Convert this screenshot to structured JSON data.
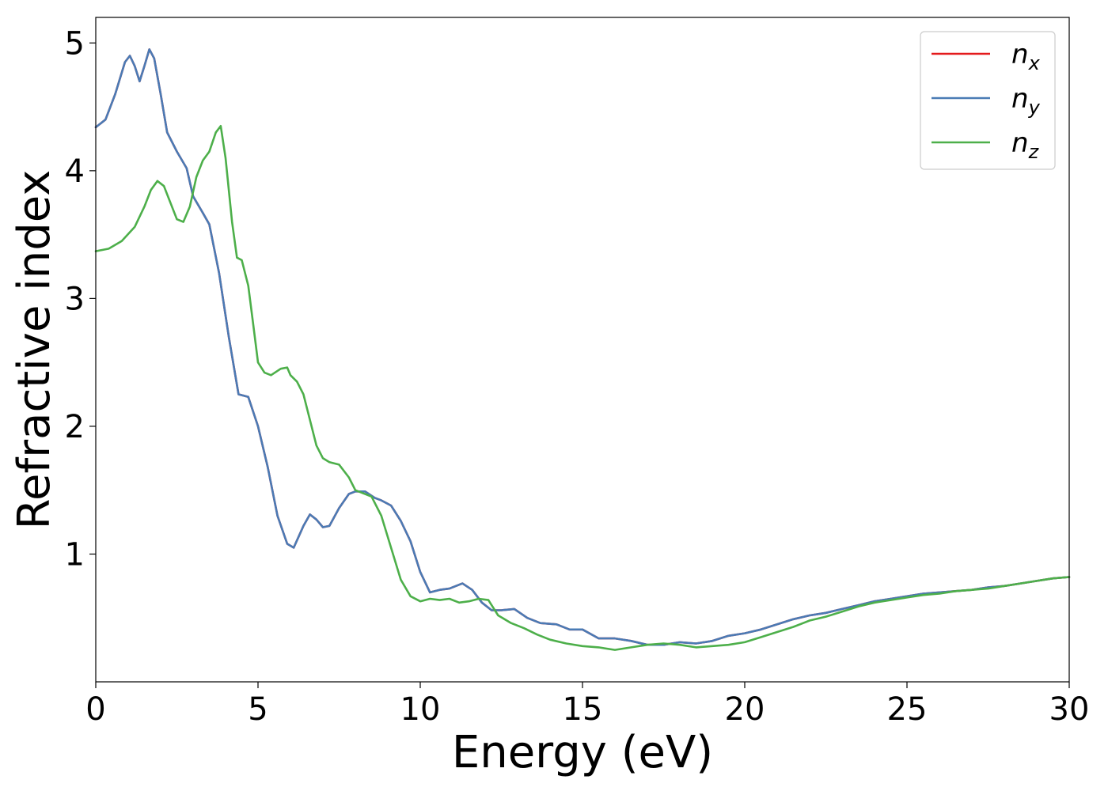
{
  "chart_data": {
    "type": "line",
    "title": "",
    "xlabel": "Energy (eV)",
    "ylabel": "Refractive index",
    "xlim": [
      0,
      30
    ],
    "ylim": [
      0,
      5.2
    ],
    "xticks": [
      0,
      5,
      10,
      15,
      20,
      25,
      30
    ],
    "yticks": [
      1,
      2,
      3,
      4,
      5
    ],
    "grid": false,
    "legend_position": "top-right",
    "series": [
      {
        "name": "n",
        "subscript": "x",
        "color": "#e41a1c",
        "x": [
          0,
          0.3,
          0.6,
          0.9,
          1.05,
          1.2,
          1.35,
          1.5,
          1.65,
          1.8,
          2.0,
          2.2,
          2.5,
          2.8,
          3.0,
          3.3,
          3.5,
          3.8,
          4.1,
          4.4,
          4.7,
          5.0,
          5.3,
          5.6,
          5.9,
          6.1,
          6.4,
          6.6,
          6.8,
          7.0,
          7.2,
          7.5,
          7.8,
          8.0,
          8.3,
          8.6,
          8.8,
          9.1,
          9.4,
          9.7,
          10.0,
          10.3,
          10.6,
          10.9,
          11.3,
          11.6,
          11.9,
          12.2,
          12.5,
          12.9,
          13.3,
          13.7,
          14.2,
          14.6,
          15.0,
          15.5,
          16.0,
          16.5,
          17.0,
          17.5,
          18.0,
          18.5,
          19.0,
          19.5,
          20.0,
          20.5,
          21.0,
          21.5,
          22.0,
          22.5,
          23.0,
          23.5,
          24.0,
          24.5,
          25.0,
          25.5,
          26.0,
          26.5,
          27.0,
          27.5,
          28.0,
          28.5,
          29.0,
          29.5,
          30.0
        ],
        "y": [
          4.34,
          4.4,
          4.6,
          4.85,
          4.9,
          4.82,
          4.7,
          4.82,
          4.95,
          4.88,
          4.6,
          4.3,
          4.15,
          4.02,
          3.8,
          3.67,
          3.58,
          3.2,
          2.7,
          2.25,
          2.23,
          2.0,
          1.68,
          1.3,
          1.08,
          1.05,
          1.22,
          1.31,
          1.27,
          1.21,
          1.22,
          1.36,
          1.47,
          1.49,
          1.49,
          1.44,
          1.42,
          1.38,
          1.26,
          1.1,
          0.86,
          0.7,
          0.72,
          0.73,
          0.77,
          0.72,
          0.62,
          0.56,
          0.56,
          0.57,
          0.5,
          0.46,
          0.45,
          0.41,
          0.41,
          0.34,
          0.34,
          0.32,
          0.29,
          0.29,
          0.31,
          0.3,
          0.32,
          0.36,
          0.38,
          0.41,
          0.45,
          0.49,
          0.52,
          0.54,
          0.57,
          0.6,
          0.63,
          0.65,
          0.67,
          0.69,
          0.7,
          0.71,
          0.72,
          0.74,
          0.75,
          0.77,
          0.79,
          0.81,
          0.82
        ]
      },
      {
        "name": "n",
        "subscript": "y",
        "color": "#4a7bb5",
        "x": [
          0,
          0.3,
          0.6,
          0.9,
          1.05,
          1.2,
          1.35,
          1.5,
          1.65,
          1.8,
          2.0,
          2.2,
          2.5,
          2.8,
          3.0,
          3.3,
          3.5,
          3.8,
          4.1,
          4.4,
          4.7,
          5.0,
          5.3,
          5.6,
          5.9,
          6.1,
          6.4,
          6.6,
          6.8,
          7.0,
          7.2,
          7.5,
          7.8,
          8.0,
          8.3,
          8.6,
          8.8,
          9.1,
          9.4,
          9.7,
          10.0,
          10.3,
          10.6,
          10.9,
          11.3,
          11.6,
          11.9,
          12.2,
          12.5,
          12.9,
          13.3,
          13.7,
          14.2,
          14.6,
          15.0,
          15.5,
          16.0,
          16.5,
          17.0,
          17.5,
          18.0,
          18.5,
          19.0,
          19.5,
          20.0,
          20.5,
          21.0,
          21.5,
          22.0,
          22.5,
          23.0,
          23.5,
          24.0,
          24.5,
          25.0,
          25.5,
          26.0,
          26.5,
          27.0,
          27.5,
          28.0,
          28.5,
          29.0,
          29.5,
          30.0
        ],
        "y": [
          4.34,
          4.4,
          4.6,
          4.85,
          4.9,
          4.82,
          4.7,
          4.82,
          4.95,
          4.88,
          4.6,
          4.3,
          4.15,
          4.02,
          3.8,
          3.67,
          3.58,
          3.2,
          2.7,
          2.25,
          2.23,
          2.0,
          1.68,
          1.3,
          1.08,
          1.05,
          1.22,
          1.31,
          1.27,
          1.21,
          1.22,
          1.36,
          1.47,
          1.49,
          1.49,
          1.44,
          1.42,
          1.38,
          1.26,
          1.1,
          0.86,
          0.7,
          0.72,
          0.73,
          0.77,
          0.72,
          0.62,
          0.56,
          0.56,
          0.57,
          0.5,
          0.46,
          0.45,
          0.41,
          0.41,
          0.34,
          0.34,
          0.32,
          0.29,
          0.29,
          0.31,
          0.3,
          0.32,
          0.36,
          0.38,
          0.41,
          0.45,
          0.49,
          0.52,
          0.54,
          0.57,
          0.6,
          0.63,
          0.65,
          0.67,
          0.69,
          0.7,
          0.71,
          0.72,
          0.74,
          0.75,
          0.77,
          0.79,
          0.81,
          0.82
        ]
      },
      {
        "name": "n",
        "subscript": "z",
        "color": "#4daf4a",
        "x": [
          0,
          0.4,
          0.8,
          1.2,
          1.5,
          1.7,
          1.9,
          2.1,
          2.3,
          2.5,
          2.7,
          2.9,
          3.1,
          3.3,
          3.5,
          3.7,
          3.85,
          4.0,
          4.2,
          4.35,
          4.5,
          4.7,
          4.85,
          5.0,
          5.2,
          5.4,
          5.7,
          5.9,
          6.0,
          6.2,
          6.4,
          6.6,
          6.8,
          7.0,
          7.2,
          7.5,
          7.8,
          8.0,
          8.2,
          8.5,
          8.8,
          9.1,
          9.4,
          9.7,
          10.0,
          10.3,
          10.6,
          10.9,
          11.2,
          11.5,
          11.8,
          12.1,
          12.4,
          12.8,
          13.2,
          13.6,
          14.0,
          14.5,
          15.0,
          15.5,
          16.0,
          16.5,
          17.0,
          17.5,
          18.0,
          18.5,
          19.0,
          19.5,
          20.0,
          20.5,
          21.0,
          21.5,
          22.0,
          22.5,
          23.0,
          23.5,
          24.0,
          24.5,
          25.0,
          25.5,
          26.0,
          26.5,
          27.0,
          27.5,
          28.0,
          28.5,
          29.0,
          29.5,
          30.0
        ],
        "y": [
          3.37,
          3.39,
          3.45,
          3.56,
          3.72,
          3.85,
          3.92,
          3.88,
          3.75,
          3.62,
          3.6,
          3.72,
          3.95,
          4.08,
          4.15,
          4.3,
          4.35,
          4.1,
          3.6,
          3.32,
          3.3,
          3.1,
          2.8,
          2.5,
          2.42,
          2.4,
          2.45,
          2.46,
          2.4,
          2.35,
          2.25,
          2.05,
          1.85,
          1.75,
          1.72,
          1.7,
          1.6,
          1.5,
          1.48,
          1.45,
          1.3,
          1.05,
          0.8,
          0.67,
          0.63,
          0.65,
          0.64,
          0.65,
          0.62,
          0.63,
          0.65,
          0.64,
          0.52,
          0.46,
          0.42,
          0.37,
          0.33,
          0.3,
          0.28,
          0.27,
          0.25,
          0.27,
          0.29,
          0.3,
          0.29,
          0.27,
          0.28,
          0.29,
          0.31,
          0.35,
          0.39,
          0.43,
          0.48,
          0.51,
          0.55,
          0.59,
          0.62,
          0.64,
          0.66,
          0.68,
          0.69,
          0.71,
          0.72,
          0.73,
          0.75,
          0.77,
          0.79,
          0.81,
          0.82
        ]
      }
    ]
  }
}
